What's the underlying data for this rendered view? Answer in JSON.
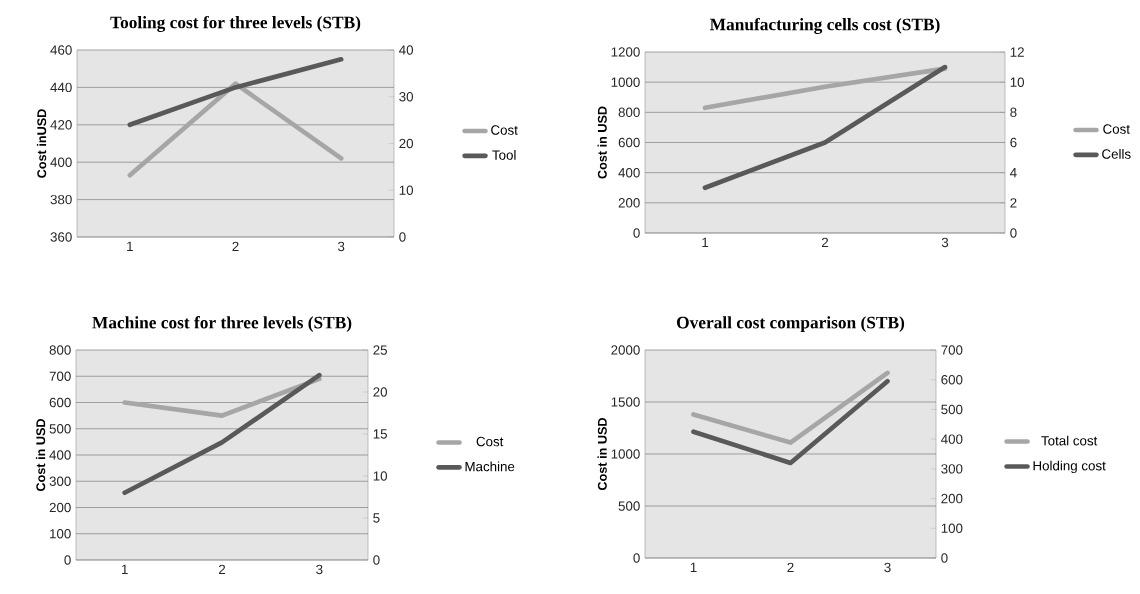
{
  "chart_data": [
    {
      "type": "line",
      "title": "Tooling cost for three levels (STB)",
      "ylabel": "Cost inUSD",
      "categories": [
        "1",
        "2",
        "3"
      ],
      "series": [
        {
          "name": "Cost",
          "color": "#a6a6a6",
          "values": [
            393,
            442,
            402
          ]
        },
        {
          "name": "Tool",
          "color": "#595959",
          "values": [
            24,
            32,
            38
          ],
          "axis": "y2"
        }
      ],
      "ylim": [
        360,
        460
      ],
      "yticks": [
        360,
        380,
        400,
        420,
        440,
        460
      ],
      "y2lim": [
        0,
        40
      ],
      "y2ticks": [
        0,
        10,
        20,
        30,
        40
      ],
      "grid": "y",
      "legend": "right"
    },
    {
      "type": "line",
      "title": "Manufacturing  cells cost  (STB)",
      "ylabel": "Cost in USD",
      "categories": [
        "1",
        "2",
        "3"
      ],
      "series": [
        {
          "name": "Cost",
          "color": "#a6a6a6",
          "values": [
            830,
            970,
            1090
          ]
        },
        {
          "name": "Cells",
          "color": "#595959",
          "values": [
            3,
            6,
            11
          ],
          "axis": "y2"
        }
      ],
      "ylim": [
        0,
        1200
      ],
      "yticks": [
        0,
        200,
        400,
        600,
        800,
        1000,
        1200
      ],
      "y2lim": [
        0,
        12
      ],
      "y2ticks": [
        0,
        2,
        4,
        6,
        8,
        10,
        12
      ],
      "grid": "y",
      "legend": "right"
    },
    {
      "type": "line",
      "title": "Machine cost for three levels (STB)",
      "ylabel": "Cost in USD",
      "categories": [
        "1",
        "2",
        "3"
      ],
      "series": [
        {
          "name": "Cost",
          "color": "#a6a6a6",
          "values": [
            600,
            550,
            690
          ]
        },
        {
          "name": "Machine",
          "color": "#595959",
          "values": [
            8,
            14,
            22
          ],
          "axis": "y2"
        }
      ],
      "ylim": [
        0,
        800
      ],
      "yticks": [
        0,
        100,
        200,
        300,
        400,
        500,
        600,
        700,
        800
      ],
      "y2lim": [
        0,
        25
      ],
      "y2ticks": [
        0,
        5,
        10,
        15,
        20,
        25
      ],
      "grid": "y",
      "legend": "right"
    },
    {
      "type": "line",
      "title": "Overall cost comparison (STB)",
      "ylabel": "Cost in USD",
      "categories": [
        "1",
        "2",
        "3"
      ],
      "series": [
        {
          "name": "Total cost",
          "color": "#a6a6a6",
          "values": [
            1380,
            1110,
            1780
          ]
        },
        {
          "name": "Holding cost",
          "color": "#595959",
          "values": [
            425,
            320,
            595
          ],
          "axis": "y2"
        }
      ],
      "ylim": [
        0,
        2000
      ],
      "yticks": [
        0,
        500,
        1000,
        1500,
        2000
      ],
      "y2lim": [
        0,
        700
      ],
      "y2ticks": [
        0,
        100,
        200,
        300,
        400,
        500,
        600,
        700
      ],
      "grid": "y",
      "legend": "right"
    }
  ]
}
